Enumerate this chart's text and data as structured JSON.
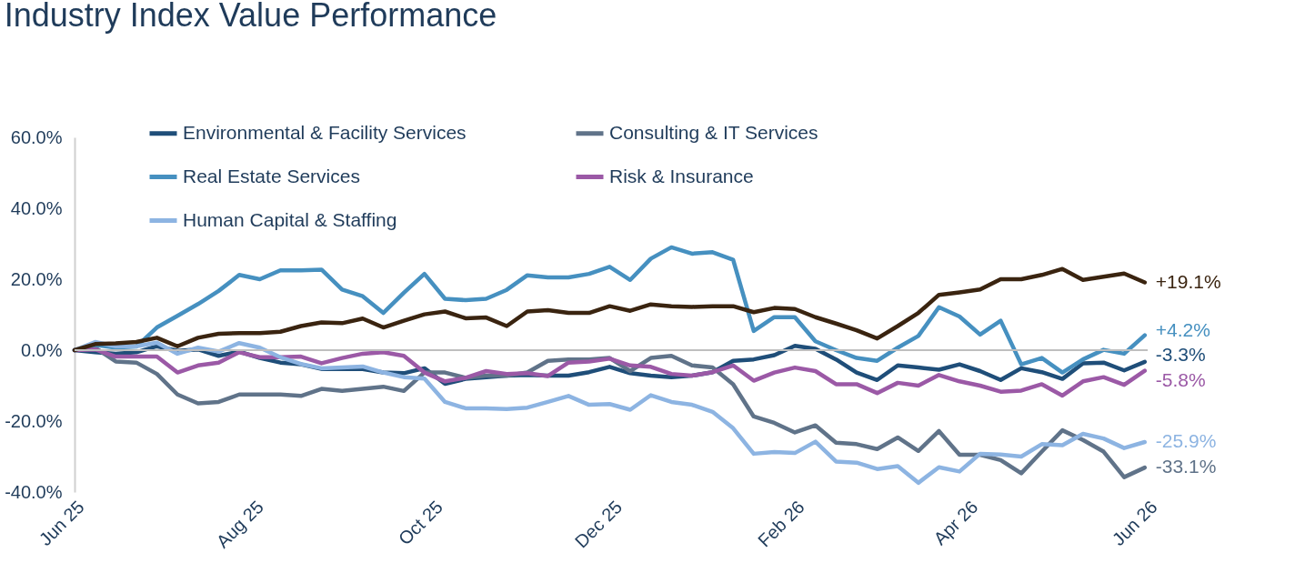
{
  "chart_data": {
    "type": "line",
    "title": "Industry Index Value Performance",
    "x": [
      "2025-06-01",
      "2025-06-08",
      "2025-06-15",
      "2025-06-22",
      "2025-06-29",
      "2025-07-06",
      "2025-07-13",
      "2025-07-20",
      "2025-07-27",
      "2025-08-03",
      "2025-08-10",
      "2025-08-17",
      "2025-08-24",
      "2025-08-31",
      "2025-09-07",
      "2025-09-14",
      "2025-09-21",
      "2025-09-28",
      "2025-10-05",
      "2025-10-12",
      "2025-10-19",
      "2025-10-26",
      "2025-11-02",
      "2025-11-09",
      "2025-11-16",
      "2025-11-23",
      "2025-11-30",
      "2025-12-07",
      "2025-12-14",
      "2025-12-21",
      "2025-12-28",
      "2026-01-04",
      "2026-01-11",
      "2026-01-18",
      "2026-01-25",
      "2026-02-01",
      "2026-02-08",
      "2026-02-15",
      "2026-02-22",
      "2026-03-01",
      "2026-03-08",
      "2026-03-15",
      "2026-03-22",
      "2026-03-29",
      "2026-04-05",
      "2026-04-12",
      "2026-04-19",
      "2026-04-26",
      "2026-05-03",
      "2026-05-10",
      "2026-05-17",
      "2026-05-24",
      "2026-05-31"
    ],
    "series": [
      {
        "name": "Environmental & Facility Services",
        "color": "#1f4e79",
        "values": [
          0,
          -0.6,
          -1.0,
          -0.6,
          1.1,
          -0.2,
          0.2,
          -1.6,
          -0.4,
          -2.2,
          -3.5,
          -4.0,
          -5.3,
          -5.3,
          -5.3,
          -6.3,
          -6.5,
          -5.1,
          -9.5,
          -8.1,
          -7.6,
          -7.2,
          -7.0,
          -7.2,
          -7.2,
          -6.2,
          -4.7,
          -6.5,
          -7.2,
          -7.6,
          -7.2,
          -6.2,
          -3.0,
          -2.6,
          -1.4,
          1.2,
          0.4,
          -2.6,
          -6.3,
          -8.4,
          -4.3,
          -4.9,
          -5.5,
          -4.0,
          -5.9,
          -8.4,
          -5.1,
          -6.2,
          -8.1,
          -3.7,
          -3.5,
          -5.7,
          -3.3
        ],
        "value_labels": [
          null,
          null,
          null,
          null,
          null,
          null,
          null,
          null,
          null,
          null,
          null,
          null,
          null,
          null,
          null,
          null,
          null,
          null,
          null,
          null,
          null,
          null,
          null,
          null,
          null,
          null,
          null,
          null,
          null,
          null,
          null,
          null,
          null,
          null,
          null,
          null,
          null,
          null,
          null,
          null,
          null,
          null,
          null,
          null,
          null,
          null,
          null,
          null,
          null,
          null,
          null,
          null,
          "-3.3%"
        ]
      },
      {
        "name": "Consulting & IT Services",
        "color": "#607389",
        "values": [
          0,
          0.7,
          -3.2,
          -3.5,
          -6.7,
          -12.5,
          -15.0,
          -14.6,
          -12.5,
          -12.5,
          -12.5,
          -12.9,
          -10.9,
          -11.5,
          -10.9,
          -10.3,
          -11.5,
          -6.3,
          -6.3,
          -7.8,
          -7.2,
          -7.2,
          -6.3,
          -3.0,
          -2.6,
          -2.6,
          -2.2,
          -5.9,
          -2.2,
          -1.6,
          -4.3,
          -4.9,
          -9.6,
          -18.7,
          -20.5,
          -23.2,
          -21.2,
          -26.1,
          -26.5,
          -27.9,
          -24.6,
          -28.4,
          -22.8,
          -29.5,
          -29.5,
          -31.0,
          -34.7,
          -28.6,
          -22.6,
          -25.3,
          -28.6,
          -35.8,
          -33.1
        ],
        "value_labels": [
          null,
          null,
          null,
          null,
          null,
          null,
          null,
          null,
          null,
          null,
          null,
          null,
          null,
          null,
          null,
          null,
          null,
          null,
          null,
          null,
          null,
          null,
          null,
          null,
          null,
          null,
          null,
          null,
          null,
          null,
          null,
          null,
          null,
          null,
          null,
          null,
          null,
          null,
          null,
          null,
          null,
          null,
          null,
          null,
          null,
          null,
          null,
          null,
          null,
          null,
          null,
          null,
          "-33.1%"
        ]
      },
      {
        "name": "Real Estate Services",
        "color": "#4690c0",
        "values": [
          0,
          1.5,
          0.7,
          1.0,
          6.4,
          9.7,
          13.0,
          16.7,
          21.2,
          20.0,
          22.5,
          22.5,
          22.7,
          17.1,
          15.2,
          10.5,
          16.2,
          21.5,
          14.5,
          14.1,
          14.5,
          17.0,
          21.1,
          20.5,
          20.5,
          21.5,
          23.5,
          19.8,
          25.8,
          29.0,
          27.2,
          27.6,
          25.5,
          5.4,
          9.3,
          9.3,
          2.5,
          0.0,
          -2.2,
          -3.0,
          0.7,
          4.0,
          12.1,
          9.5,
          4.4,
          8.3,
          -4.0,
          -2.2,
          -6.3,
          -2.6,
          0.1,
          -1.0,
          4.2
        ],
        "value_labels": [
          null,
          null,
          null,
          null,
          null,
          null,
          null,
          null,
          null,
          null,
          null,
          null,
          null,
          null,
          null,
          null,
          null,
          null,
          null,
          null,
          null,
          null,
          null,
          null,
          null,
          null,
          null,
          null,
          null,
          null,
          null,
          null,
          null,
          null,
          null,
          null,
          null,
          null,
          null,
          null,
          null,
          null,
          null,
          null,
          null,
          null,
          null,
          null,
          null,
          null,
          null,
          null,
          "+4.2%"
        ]
      },
      {
        "name": "Risk & Insurance",
        "color": "#9b59a6",
        "values": [
          0,
          0.2,
          -1.8,
          -1.8,
          -1.8,
          -6.3,
          -4.3,
          -3.5,
          -0.6,
          -2.0,
          -2.0,
          -1.8,
          -3.7,
          -2.2,
          -1.0,
          -0.6,
          -1.6,
          -6.3,
          -8.8,
          -7.8,
          -5.9,
          -6.7,
          -6.5,
          -7.3,
          -3.5,
          -3.2,
          -2.4,
          -4.3,
          -4.7,
          -6.7,
          -7.2,
          -6.2,
          -4.3,
          -8.6,
          -6.3,
          -4.9,
          -5.9,
          -9.6,
          -9.6,
          -12.1,
          -9.2,
          -10.0,
          -7.0,
          -8.8,
          -10.0,
          -11.7,
          -11.4,
          -9.6,
          -12.8,
          -8.8,
          -7.6,
          -9.8,
          -5.8
        ],
        "value_labels": [
          null,
          null,
          null,
          null,
          null,
          null,
          null,
          null,
          null,
          null,
          null,
          null,
          null,
          null,
          null,
          null,
          null,
          null,
          null,
          null,
          null,
          null,
          null,
          null,
          null,
          null,
          null,
          null,
          null,
          null,
          null,
          null,
          null,
          null,
          null,
          null,
          null,
          null,
          null,
          null,
          null,
          null,
          null,
          null,
          null,
          null,
          null,
          null,
          null,
          null,
          null,
          null,
          "-5.8%"
        ]
      },
      {
        "name": "Human Capital & Staffing",
        "color": "#8db4e2",
        "values": [
          0,
          2.3,
          1.1,
          1.1,
          2.1,
          -1.0,
          0.7,
          -0.4,
          2.0,
          0.7,
          -2.0,
          -3.9,
          -5.1,
          -4.9,
          -4.6,
          -6.3,
          -7.6,
          -8.0,
          -14.6,
          -16.4,
          -16.4,
          -16.6,
          -16.2,
          -14.6,
          -12.9,
          -15.4,
          -15.2,
          -16.8,
          -12.7,
          -14.6,
          -15.4,
          -17.4,
          -22.0,
          -29.2,
          -28.7,
          -29.0,
          -25.8,
          -31.4,
          -31.7,
          -33.5,
          -32.7,
          -37.4,
          -33.0,
          -34.2,
          -29.2,
          -29.4,
          -30.0,
          -26.5,
          -26.8,
          -23.6,
          -24.9,
          -27.6,
          -25.9
        ],
        "value_labels": [
          null,
          null,
          null,
          null,
          null,
          null,
          null,
          null,
          null,
          null,
          null,
          null,
          null,
          null,
          null,
          null,
          null,
          null,
          null,
          null,
          null,
          null,
          null,
          null,
          null,
          null,
          null,
          null,
          null,
          null,
          null,
          null,
          null,
          null,
          null,
          null,
          null,
          null,
          null,
          null,
          null,
          null,
          null,
          null,
          null,
          null,
          null,
          null,
          null,
          null,
          null,
          null,
          "-25.9%"
        ]
      },
      {
        "color": "#3a2410",
        "values": [
          0,
          1.7,
          1.9,
          2.3,
          3.5,
          1.1,
          3.5,
          4.6,
          4.8,
          4.8,
          5.2,
          6.8,
          7.8,
          7.6,
          8.9,
          6.4,
          8.3,
          10.1,
          10.9,
          9.0,
          9.2,
          6.8,
          10.9,
          11.3,
          10.5,
          10.5,
          12.4,
          11.1,
          12.9,
          12.4,
          12.2,
          12.4,
          12.4,
          10.7,
          11.9,
          11.6,
          9.3,
          7.5,
          5.6,
          3.3,
          6.8,
          10.5,
          15.6,
          16.3,
          17.1,
          20.0,
          20.0,
          21.2,
          22.9,
          19.8,
          20.7,
          21.6,
          19.1
        ],
        "value_labels": [
          null,
          null,
          null,
          null,
          null,
          null,
          null,
          null,
          null,
          null,
          null,
          null,
          null,
          null,
          null,
          null,
          null,
          null,
          null,
          null,
          null,
          null,
          null,
          null,
          null,
          null,
          null,
          null,
          null,
          null,
          null,
          null,
          null,
          null,
          null,
          null,
          null,
          null,
          null,
          null,
          null,
          null,
          null,
          null,
          null,
          null,
          null,
          null,
          null,
          null,
          null,
          null,
          "+19.1%"
        ]
      }
    ],
    "xlim": [
      "2025-06-01",
      "2026-06-01"
    ],
    "xticks": [
      {
        "value": "2025-06-01",
        "label": "Jun 25"
      },
      {
        "value": "2025-08-01",
        "label": "Aug 25"
      },
      {
        "value": "2025-10-01",
        "label": "Oct 25"
      },
      {
        "value": "2025-12-01",
        "label": "Dec 25"
      },
      {
        "value": "2026-02-01",
        "label": "Feb 26"
      },
      {
        "value": "2026-04-01",
        "label": "Apr 26"
      },
      {
        "value": "2026-06-01",
        "label": "Jun 26"
      }
    ],
    "ylim": [
      -40,
      60
    ],
    "yticks": [
      {
        "value": -40,
        "label": "-40.0%"
      },
      {
        "value": -20,
        "label": "-20.0%"
      },
      {
        "value": 0,
        "label": "0.0%"
      },
      {
        "value": 20,
        "label": "20.0%"
      },
      {
        "value": 40,
        "label": "40.0%"
      },
      {
        "value": 60,
        "label": "60.0%"
      }
    ],
    "ref_lines": [
      {
        "axis": "y",
        "value": 0,
        "color": "#bfbfbf"
      }
    ],
    "grid": false,
    "legend": "top",
    "line_style": "solid",
    "marker": "none"
  }
}
